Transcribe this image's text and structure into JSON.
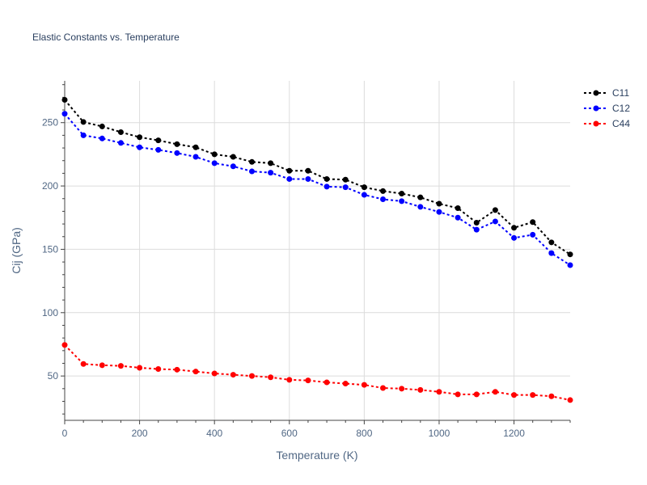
{
  "chart_data": {
    "type": "line",
    "title": "Elastic Constants vs. Temperature",
    "xlabel": "Temperature (K)",
    "ylabel": "Cij (GPa)",
    "xlim": [
      0,
      1350
    ],
    "ylim": [
      15,
      283
    ],
    "x_ticks": [
      0,
      200,
      400,
      600,
      800,
      1000,
      1200
    ],
    "y_ticks": [
      50,
      100,
      150,
      200,
      250
    ],
    "grid": true,
    "legend_position": "top-right",
    "x": [
      0,
      50,
      100,
      150,
      200,
      250,
      300,
      350,
      400,
      450,
      500,
      550,
      600,
      650,
      700,
      750,
      800,
      850,
      900,
      950,
      1000,
      1050,
      1100,
      1150,
      1200,
      1250,
      1300,
      1350
    ],
    "series": [
      {
        "name": "C11",
        "color": "#000000",
        "values": [
          268,
          250.5,
          247,
          242.5,
          238.5,
          236,
          233,
          230.5,
          225,
          223,
          219,
          218,
          212,
          212,
          205.5,
          205,
          199,
          196,
          194,
          191,
          186,
          182.5,
          171,
          181,
          167,
          171.5,
          155.5,
          146
        ]
      },
      {
        "name": "C12",
        "color": "#0000ff",
        "values": [
          257,
          240,
          237.5,
          234,
          230.5,
          228.5,
          226,
          223,
          218,
          215.5,
          211.5,
          210.5,
          205.5,
          205.5,
          199.5,
          199,
          193,
          189.5,
          188,
          183.5,
          179.5,
          175,
          165.5,
          172,
          159,
          161.5,
          147,
          137.5
        ]
      },
      {
        "name": "C44",
        "color": "#ff0000",
        "values": [
          74.5,
          59.5,
          58.5,
          58,
          56.5,
          55.5,
          55,
          53.5,
          52,
          51,
          50,
          49,
          47,
          46.5,
          45,
          44,
          43,
          40.5,
          40,
          39,
          37.5,
          35.5,
          35.5,
          37.5,
          35,
          35,
          34,
          31
        ]
      }
    ]
  }
}
